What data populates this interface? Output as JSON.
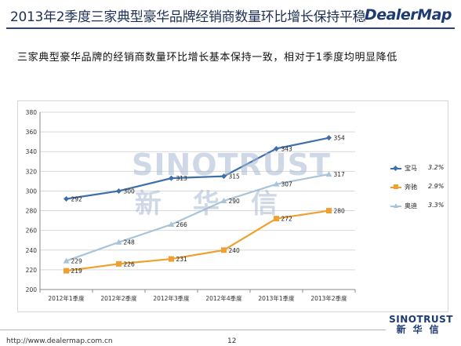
{
  "header": {
    "title": "2013年2季度三家典型豪华品牌经销商数量环比增长保持平稳",
    "logo_text": "DealerMap"
  },
  "subtitle": "三家典型豪华品牌的经销商数量环比增长基本保持一致，相对于1季度均明显降低",
  "watermark": {
    "latin": "SINOTRUST",
    "cjk": "新华信"
  },
  "legend": [
    {
      "name": "宝马",
      "growth": "3.2%"
    },
    {
      "name": "奔驰",
      "growth": "2.9%"
    },
    {
      "name": "奥迪",
      "growth": "3.3%"
    }
  ],
  "footer": {
    "url": "http://www.dealermap.com.cn",
    "page": "12",
    "logo_line1": "SINOTRUST",
    "logo_line2": "新华信"
  },
  "chart_data": {
    "type": "line",
    "categories": [
      "2012年1季度",
      "2012年2季度",
      "2012年3季度",
      "2012年4季度",
      "2013年1季度",
      "2013年2季度"
    ],
    "series": [
      {
        "name": "宝马",
        "values": [
          292,
          300,
          313,
          315,
          343,
          354
        ],
        "color": "#3f6fa8",
        "marker": "diamond"
      },
      {
        "name": "奔驰",
        "values": [
          219,
          226,
          231,
          240,
          272,
          280
        ],
        "color": "#f0a030",
        "marker": "square"
      },
      {
        "name": "奥迪",
        "values": [
          229,
          248,
          266,
          290,
          307,
          317
        ],
        "color": "#a9c4d8",
        "marker": "triangle"
      }
    ],
    "ylim": [
      200,
      380
    ],
    "ytick_step": 20,
    "grid": true,
    "legend_position": "right",
    "data_labels": true
  }
}
